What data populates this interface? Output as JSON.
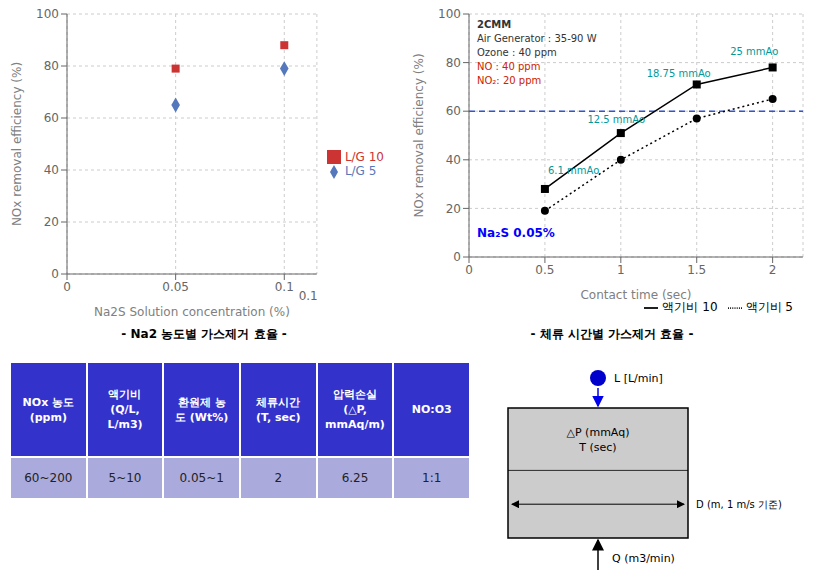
{
  "chart_data": [
    {
      "type": "scatter",
      "subtitle": "- Na2 농도별 가스제거 효율 -",
      "x_label": "Na2S Solution concentration (%)",
      "y_label": "NOx removal efficiency (%)",
      "x": [
        0.05,
        0.1
      ],
      "series": [
        {
          "name": "L/G 5",
          "color": "#5577BB",
          "marker": "diamond",
          "values": [
            65,
            79
          ]
        },
        {
          "name": "L/G 10",
          "color": "#CC3333",
          "marker": "square",
          "values": [
            79,
            88
          ]
        }
      ],
      "xlim": [
        0,
        0.115
      ],
      "ylim": [
        0,
        100
      ],
      "xticks": [
        0,
        0.05,
        0.1
      ],
      "yticks": [
        0,
        20,
        40,
        60,
        80,
        100
      ],
      "grid": true,
      "legend": "center right",
      "annotations": [
        {
          "x": 0.111,
          "y": -6.5,
          "text": "0.1"
        }
      ]
    },
    {
      "type": "line",
      "subtitle": "- 체류 시간별 가스제거 효율 -",
      "x_label": "Contact time (sec)",
      "y_label": "NOx removal efficiency (%)",
      "x": [
        0.5,
        1.0,
        1.5,
        2.0
      ],
      "series": [
        {
          "name": "액기비 10",
          "color": "#000000",
          "marker": "square",
          "line_style": "solid",
          "values": [
            28,
            51,
            71,
            78
          ]
        },
        {
          "name": "액기비 5",
          "color": "#000000",
          "marker": "circle",
          "line_style": "dotted",
          "values": [
            19,
            40,
            57,
            65
          ]
        }
      ],
      "xlim": [
        0,
        2.2
      ],
      "ylim": [
        0,
        100
      ],
      "xticks": [
        0,
        0.5,
        1,
        1.5,
        2
      ],
      "yticks": [
        0,
        20,
        40,
        60,
        80,
        100
      ],
      "grid": true,
      "legend": "lower right",
      "hline": {
        "y": 60,
        "color": "#3355CC",
        "line_style": "dashed"
      },
      "annotations": [
        {
          "x": 0.52,
          "y": 34,
          "text": "6.1 mmAo",
          "color": "#009999"
        },
        {
          "x": 0.78,
          "y": 55,
          "text": "12.5 mmAo",
          "color": "#009999"
        },
        {
          "x": 1.17,
          "y": 74,
          "text": "18.75 mmAo",
          "color": "#009999"
        },
        {
          "x": 1.72,
          "y": 83,
          "text": "25 mmAo",
          "color": "#009999"
        }
      ],
      "info_texts": [
        {
          "text": "2CMM"
        },
        {
          "text": "Air Generator : 35-90 W"
        },
        {
          "text": "Ozone : 40 ppm"
        },
        {
          "text": "NO : 40 ppm",
          "color": "#CC2200"
        },
        {
          "text": "NO₂: 20 ppm",
          "color": "#CC2200"
        }
      ],
      "corner_text": {
        "text": "Na₂S 0.05%",
        "color": "blue"
      }
    },
    {
      "type": "table",
      "categories": [
        "NOx 농도\n(ppm)",
        "액기비\n(Q/L,\nL/m3)",
        "환원제 농\n도 (Wt%)",
        "체류시간\n(T, sec)",
        "압력손실\n(△P,\nmmAq/m)",
        "NO:O3"
      ],
      "values": [
        "60~200",
        "5~10",
        "0.05~1",
        "2",
        "6.25",
        "1:1"
      ],
      "colors": [
        "#3333CC",
        "#AAAADD"
      ]
    },
    {
      "type": "diagram",
      "annotations": [
        {
          "text": "L [L/min]"
        },
        {
          "text": "△P (mmAq)\nT (sec)"
        },
        {
          "text": "D (m, 1 m/s 기준)"
        },
        {
          "text": "Q (m3/min)"
        }
      ],
      "colors": [
        "#CCCCCC",
        "#0000CC",
        "#0000EE"
      ]
    }
  ]
}
